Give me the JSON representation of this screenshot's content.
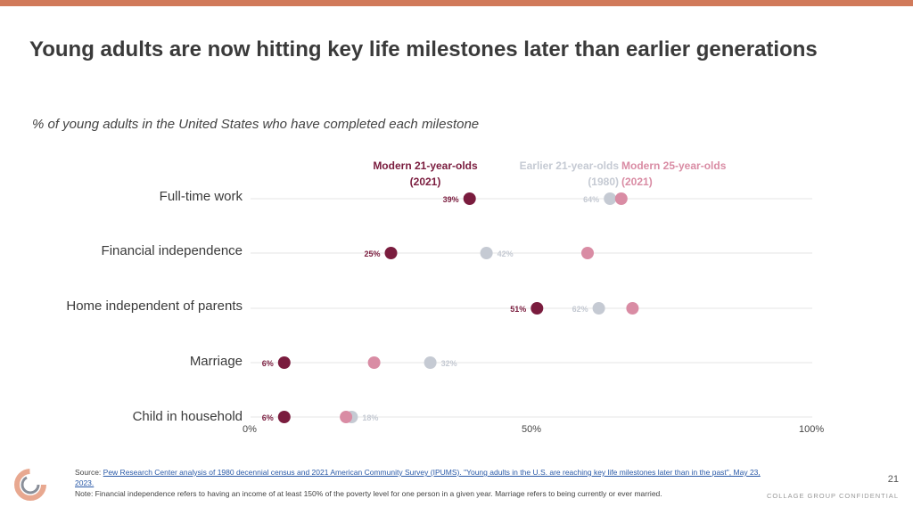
{
  "header": {
    "title": "Young adults are now hitting key life milestones later than earlier generations",
    "subtitle": "% of young adults in the United States who have completed each milestone"
  },
  "colors": {
    "accent_bar": "#d17a5a",
    "modern_21": "#7a1c3e",
    "earlier_21": "#c5cad3",
    "modern_25": "#d98ca4",
    "gridline": "#e4e4e4"
  },
  "chart_data": {
    "type": "scatter",
    "title": "Young adults are now hitting key life milestones later than earlier generations",
    "subtitle": "% of young adults in the United States who have completed each milestone",
    "categories": [
      "Full-time work",
      "Financial independence",
      "Home independent of parents",
      "Marriage",
      "Child in household"
    ],
    "xlim": [
      0,
      100
    ],
    "x_ticks": [
      "0%",
      "50%",
      "100%"
    ],
    "series": [
      {
        "name": "Modern 21-year-olds (2021)",
        "line1": "Modern 21-year-olds",
        "line2": "(2021)",
        "values": [
          39,
          25,
          51,
          6,
          6
        ],
        "labels": [
          "39%",
          "25%",
          "51%",
          "6%",
          "6%"
        ]
      },
      {
        "name": "Earlier 21-year-olds (1980)",
        "line1": "Earlier 21-year-olds",
        "line2": "(1980)",
        "values": [
          64,
          42,
          62,
          32,
          18
        ],
        "labels": [
          "64%",
          "42%",
          "62%",
          "32%",
          "18%"
        ]
      },
      {
        "name": "Modern 25-year-olds (2021)",
        "line1": "Modern 25-year-olds",
        "line2": "(2021)",
        "values": [
          66,
          60,
          68,
          22,
          17
        ],
        "labels": []
      }
    ],
    "grid": true,
    "legend_position": "top"
  },
  "footer": {
    "source_prefix": "Source: ",
    "source_link": "Pew Research Center analysis of 1980 decennial census and 2021 American Community Survey (IPUMS). \"Young adults in the U.S. are reaching key life milestones later than in the past\", May 23, 2023.",
    "note": "Note: Financial independence refers to having an income of at least 150% of the poverty level for one person in a given year. Marriage refers to being currently or ever married.",
    "page_number": "21",
    "confidential": "COLLAGE GROUP CONFIDENTIAL"
  }
}
